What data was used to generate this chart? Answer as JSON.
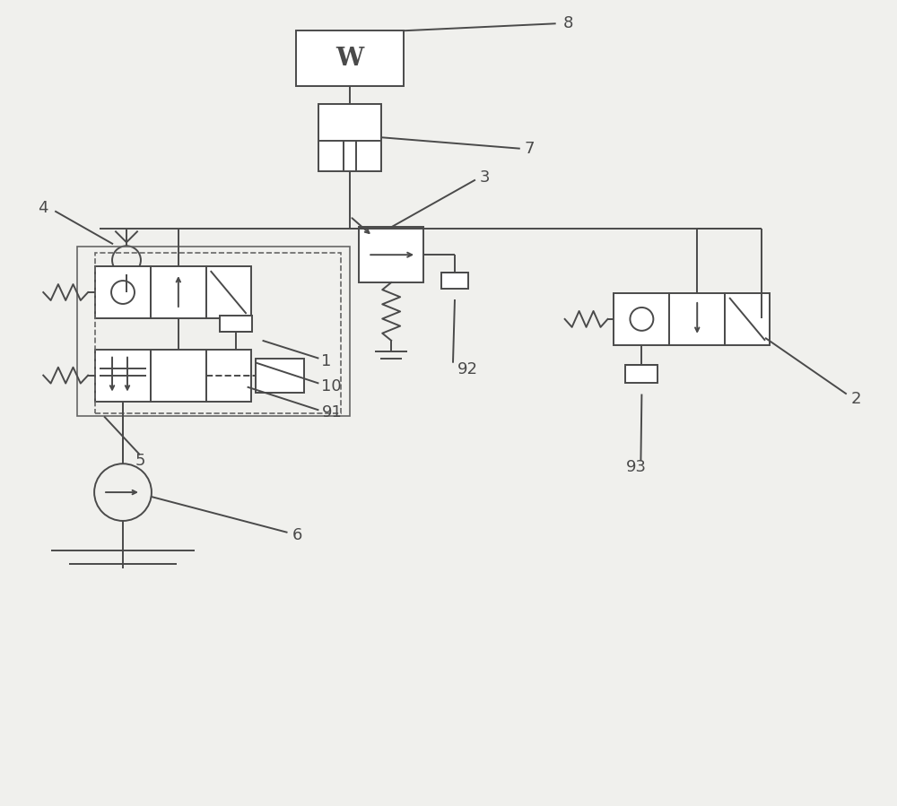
{
  "bg_color": "#f0f0ed",
  "line_color": "#4a4a4a",
  "line_width": 1.4,
  "fig_w": 10.0,
  "fig_h": 8.99
}
